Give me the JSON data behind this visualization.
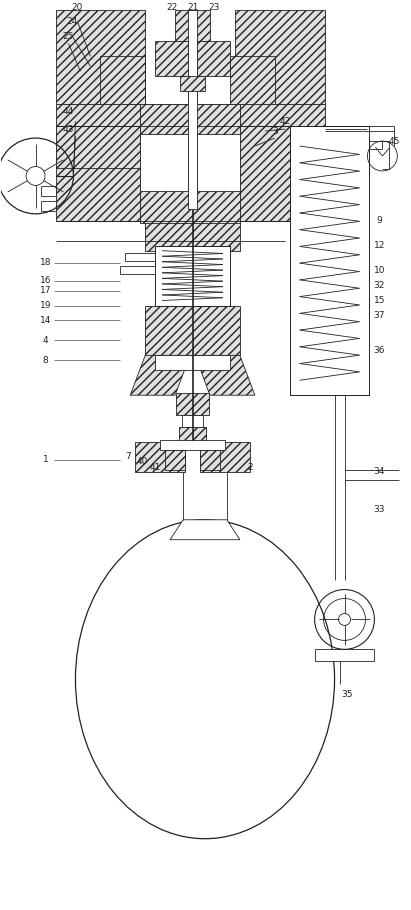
{
  "bg_color": "#ffffff",
  "line_color": "#222222",
  "figsize": [
    4.11,
    9.1
  ],
  "dpi": 100,
  "hatch": "////",
  "lw": 0.6
}
